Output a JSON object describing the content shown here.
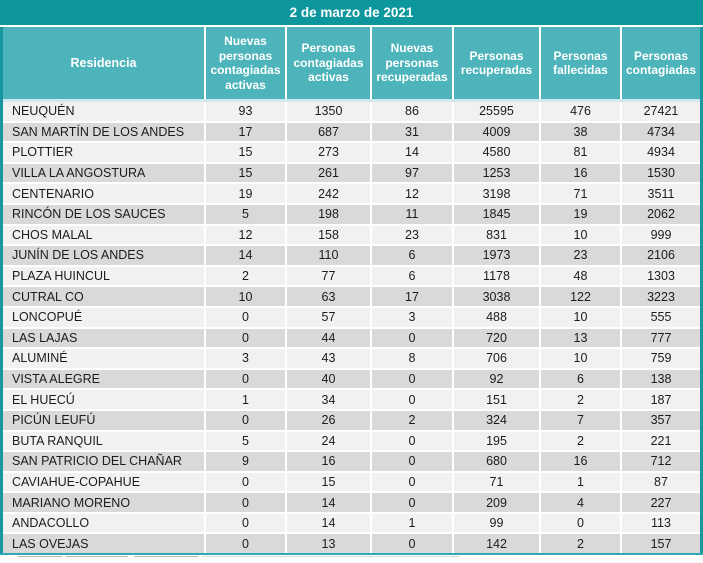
{
  "chart_data": {
    "type": "table",
    "title": "2 de marzo de 2021",
    "columns": [
      "Residencia",
      "Nuevas personas contagiadas activas",
      "Personas contagiadas activas",
      "Nuevas personas recuperadas",
      "Personas recuperadas",
      "Personas fallecidas",
      "Personas contagiadas"
    ],
    "rows": [
      [
        "NEUQUÉN",
        93,
        1350,
        86,
        25595,
        476,
        27421
      ],
      [
        "SAN MARTÍN DE LOS ANDES",
        17,
        687,
        31,
        4009,
        38,
        4734
      ],
      [
        "PLOTTIER",
        15,
        273,
        14,
        4580,
        81,
        4934
      ],
      [
        "VILLA LA ANGOSTURA",
        15,
        261,
        97,
        1253,
        16,
        1530
      ],
      [
        "CENTENARIO",
        19,
        242,
        12,
        3198,
        71,
        3511
      ],
      [
        "RINCÓN DE LOS SAUCES",
        5,
        198,
        11,
        1845,
        19,
        2062
      ],
      [
        "CHOS MALAL",
        12,
        158,
        23,
        831,
        10,
        999
      ],
      [
        "JUNÍN DE LOS ANDES",
        14,
        110,
        6,
        1973,
        23,
        2106
      ],
      [
        "PLAZA HUINCUL",
        2,
        77,
        6,
        1178,
        48,
        1303
      ],
      [
        "CUTRAL CO",
        10,
        63,
        17,
        3038,
        122,
        3223
      ],
      [
        "LONCOPUÉ",
        0,
        57,
        3,
        488,
        10,
        555
      ],
      [
        "LAS LAJAS",
        0,
        44,
        0,
        720,
        13,
        777
      ],
      [
        "ALUMINÉ",
        3,
        43,
        8,
        706,
        10,
        759
      ],
      [
        "VISTA ALEGRE",
        0,
        40,
        0,
        92,
        6,
        138
      ],
      [
        "EL HUECÚ",
        1,
        34,
        0,
        151,
        2,
        187
      ],
      [
        "PICÚN LEUFÚ",
        0,
        26,
        2,
        324,
        7,
        357
      ],
      [
        "BUTA RANQUIL",
        5,
        24,
        0,
        195,
        2,
        221
      ],
      [
        "SAN PATRICIO DEL CHAÑAR",
        9,
        16,
        0,
        680,
        16,
        712
      ],
      [
        "CAVIAHUE-COPAHUE",
        0,
        15,
        0,
        71,
        1,
        87
      ],
      [
        "MARIANO MORENO",
        0,
        14,
        0,
        209,
        4,
        227
      ],
      [
        "ANDACOLLO",
        0,
        14,
        1,
        99,
        0,
        113
      ],
      [
        "LAS OVEJAS",
        0,
        13,
        0,
        142,
        2,
        157
      ]
    ],
    "layout": {
      "header_lines_wrap": true,
      "first_column_align": "left",
      "value_columns_align": "center",
      "alternating_rows": true
    },
    "colors": {
      "title_bar": "#0d979c",
      "header_bg": "#4cb4ba",
      "header_text": "#ffffff",
      "row_light": "#f1f1f1",
      "row_dark": "#d9d9d9",
      "data_text": "#1c1c1c",
      "outer_border": "#18989e",
      "under_header_line": "#cfe9ef",
      "bottom_line": "#2fa7b5"
    }
  }
}
